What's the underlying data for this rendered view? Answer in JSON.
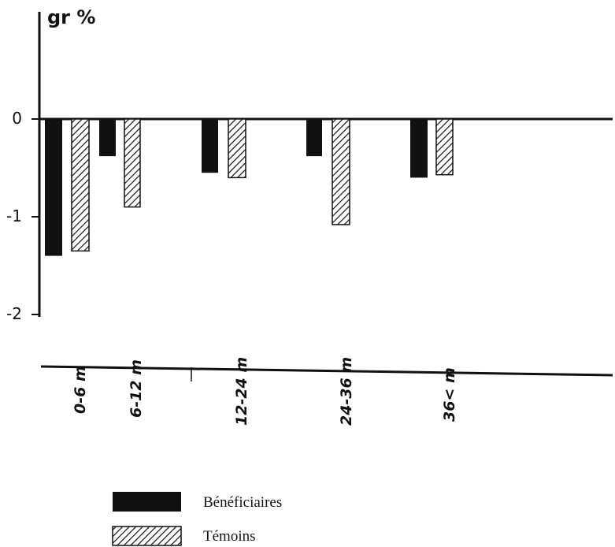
{
  "chart_data": {
    "type": "bar",
    "ylabel": "gr %",
    "ylim": [
      -2,
      0
    ],
    "yticks": [
      0,
      -1,
      -2
    ],
    "ytick_labels": [
      "0",
      "-1",
      "-2"
    ],
    "categories": [
      "0-6 m",
      "6-12 m",
      "12-24 m",
      "24-36 m",
      "36< m"
    ],
    "category_labels": [
      "0-6 m",
      "6-12 m",
      "12-24 m",
      "24-36 m",
      "36< m"
    ],
    "series": [
      {
        "name": "Bénéficiaires",
        "values": [
          -1.4,
          -0.38,
          -0.55,
          -0.38,
          -0.6
        ],
        "pattern": "solid",
        "color": "#111111"
      },
      {
        "name": "Témoins",
        "values": [
          -1.35,
          -0.9,
          -0.6,
          -1.08,
          -0.57
        ],
        "pattern": "hatched",
        "color": "#111111"
      }
    ],
    "legend": "bottom-center",
    "grid": false
  }
}
